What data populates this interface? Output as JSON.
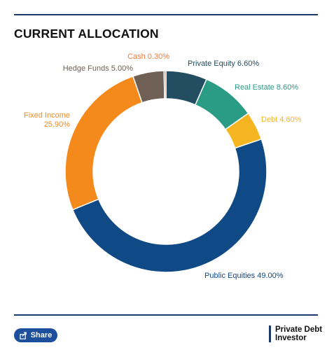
{
  "header": {
    "title": "CURRENT ALLOCATION"
  },
  "chart_data": {
    "type": "pie",
    "variant": "donut",
    "slices": [
      {
        "label": "Private Equity",
        "value": 6.6,
        "display": "Private Equity 6.60%",
        "color": "#234d60"
      },
      {
        "label": "Real Estate",
        "value": 8.6,
        "display": "Real Estate 8.60%",
        "color": "#2a9b85"
      },
      {
        "label": "Debt",
        "value": 4.6,
        "display": "Debt 4.60%",
        "color": "#f5b521"
      },
      {
        "label": "Public Equities",
        "value": 49.0,
        "display": "Public Equities 49.00%",
        "color": "#0f4a86"
      },
      {
        "label": "Fixed Income",
        "value": 25.9,
        "display": [
          "Fixed Income",
          "25.90%"
        ],
        "color": "#f48a1c"
      },
      {
        "label": "Hedge Funds",
        "value": 5.0,
        "display": "Hedge Funds 5.00%",
        "color": "#6f5f55"
      },
      {
        "label": "Cash",
        "value": 0.3,
        "display": "Cash 0.30%",
        "color": "#f07a3a"
      }
    ]
  },
  "footer": {
    "share_label": "Share",
    "share_icon": "share-icon",
    "brand_line1": "Private Debt",
    "brand_line2": "Investor",
    "brand_color": "#1b3a6b"
  }
}
